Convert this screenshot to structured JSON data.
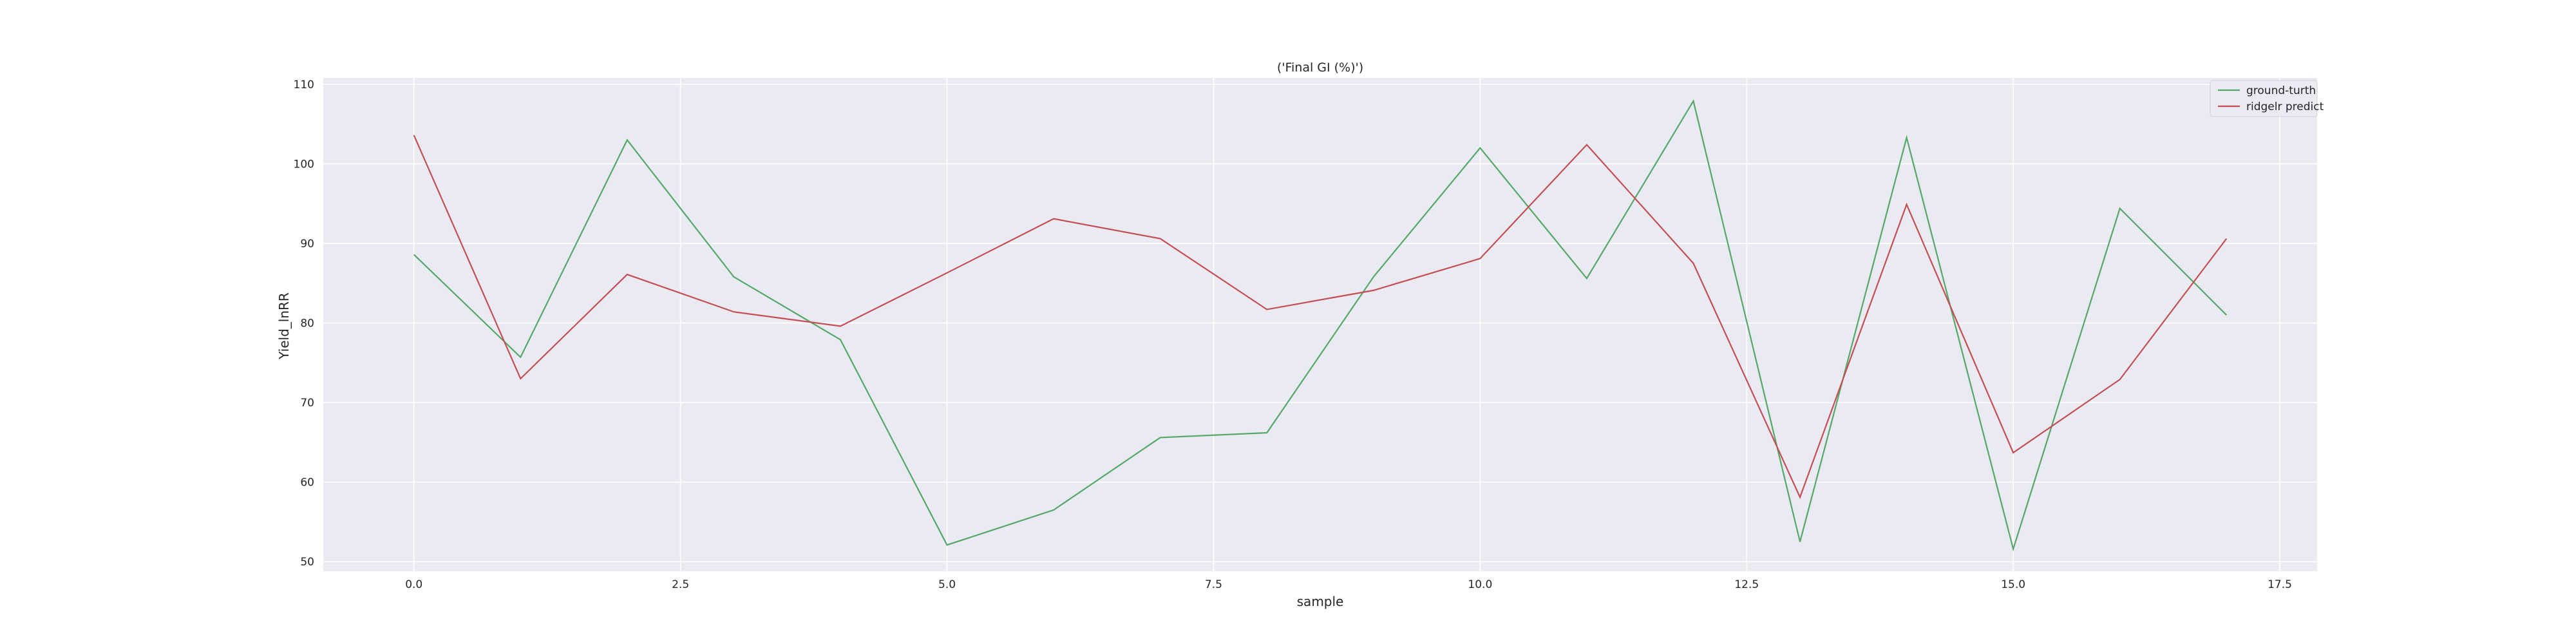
{
  "chart_data": {
    "type": "line",
    "title": "('Final GI (%)')",
    "xlabel": "sample",
    "ylabel": "Yield_lnRR",
    "xlim": [
      -0.85,
      17.85
    ],
    "ylim": [
      48.8,
      110.8
    ],
    "xticks": [
      0.0,
      2.5,
      5.0,
      7.5,
      10.0,
      12.5,
      15.0,
      17.5
    ],
    "xtick_labels": [
      "0.0",
      "2.5",
      "5.0",
      "7.5",
      "10.0",
      "12.5",
      "15.0",
      "17.5"
    ],
    "yticks": [
      50,
      60,
      70,
      80,
      90,
      100,
      110
    ],
    "ytick_labels": [
      "50",
      "60",
      "70",
      "80",
      "90",
      "100",
      "110"
    ],
    "grid": true,
    "background": "#eaeaf2",
    "legend_position": "top-right",
    "x": [
      0,
      1,
      2,
      3,
      4,
      5,
      6,
      7,
      8,
      9,
      10,
      11,
      12,
      13,
      14,
      15,
      16,
      17
    ],
    "series": [
      {
        "name": "ground-turth",
        "color": "#55a868",
        "values": [
          88.6,
          75.7,
          103.0,
          85.8,
          77.9,
          52.1,
          56.5,
          65.6,
          66.2,
          85.8,
          102.0,
          85.6,
          107.9,
          52.5,
          103.3,
          51.6,
          94.4,
          81.0
        ]
      },
      {
        "name": "ridgelr predict",
        "color": "#c44e52",
        "values": [
          103.6,
          73.0,
          86.1,
          81.4,
          79.6,
          86.3,
          93.1,
          90.6,
          81.7,
          84.1,
          88.1,
          102.4,
          87.5,
          58.1,
          94.9,
          63.7,
          72.9,
          90.6
        ]
      }
    ]
  }
}
